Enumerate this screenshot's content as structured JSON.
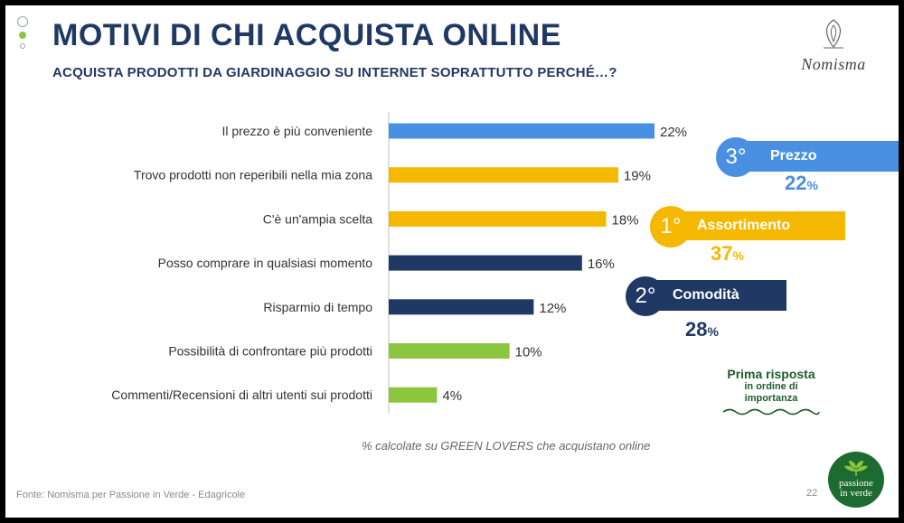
{
  "header": {
    "title": "MOTIVI DI CHI ACQUISTA ONLINE",
    "subtitle": "ACQUISTA PRODOTTI DA GIARDINAGGIO SU INTERNET SOPRATTUTTO PERCHÉ…?",
    "logo": "Nomisma"
  },
  "chart_data": {
    "type": "bar",
    "orientation": "horizontal",
    "categories": [
      "Il prezzo è più conveniente",
      "Trovo prodotti non reperibili nella mia zona",
      "C'è un'ampia scelta",
      "Posso comprare in qualsiasi momento",
      "Risparmio di tempo",
      "Possibilità di confrontare più prodotti",
      "Commenti/Recensioni di altri utenti sui prodotti"
    ],
    "values": [
      22,
      19,
      18,
      16,
      12,
      10,
      4
    ],
    "data_labels": [
      "22%",
      "19%",
      "18%",
      "16%",
      "12%",
      "10%",
      "4%"
    ],
    "bar_colors": [
      "#4a90e2",
      "#f5b800",
      "#f5b800",
      "#1f3864",
      "#1f3864",
      "#8cc63f",
      "#8cc63f"
    ],
    "xlim": [
      0,
      22
    ],
    "grid": false,
    "legend": "none"
  },
  "ranking": [
    {
      "rank": "3°",
      "label": "Prezzo",
      "percent": "22",
      "unit": "%",
      "color": "#4a90e2"
    },
    {
      "rank": "1°",
      "label": "Assortimento",
      "percent": "37",
      "unit": "%",
      "color": "#f5b800"
    },
    {
      "rank": "2°",
      "label": "Comodità",
      "percent": "28",
      "unit": "%",
      "color": "#1f3864"
    }
  ],
  "prima_risposta": {
    "title": "Prima risposta",
    "line1": "in ordine di",
    "line2": "importanza"
  },
  "note": "% calcolate su GREEN LOVERS che acquistano online",
  "footer": {
    "source": "Fonte: Nomisma per Passione in Verde - Edagricole",
    "page": "22",
    "brand_line1": "passione",
    "brand_line2": "in verde"
  },
  "colors": {
    "navy": "#1f3864",
    "blue": "#4a90e2",
    "yellow": "#f5b800",
    "green": "#8cc63f",
    "dark_green": "#1e5b2b"
  }
}
